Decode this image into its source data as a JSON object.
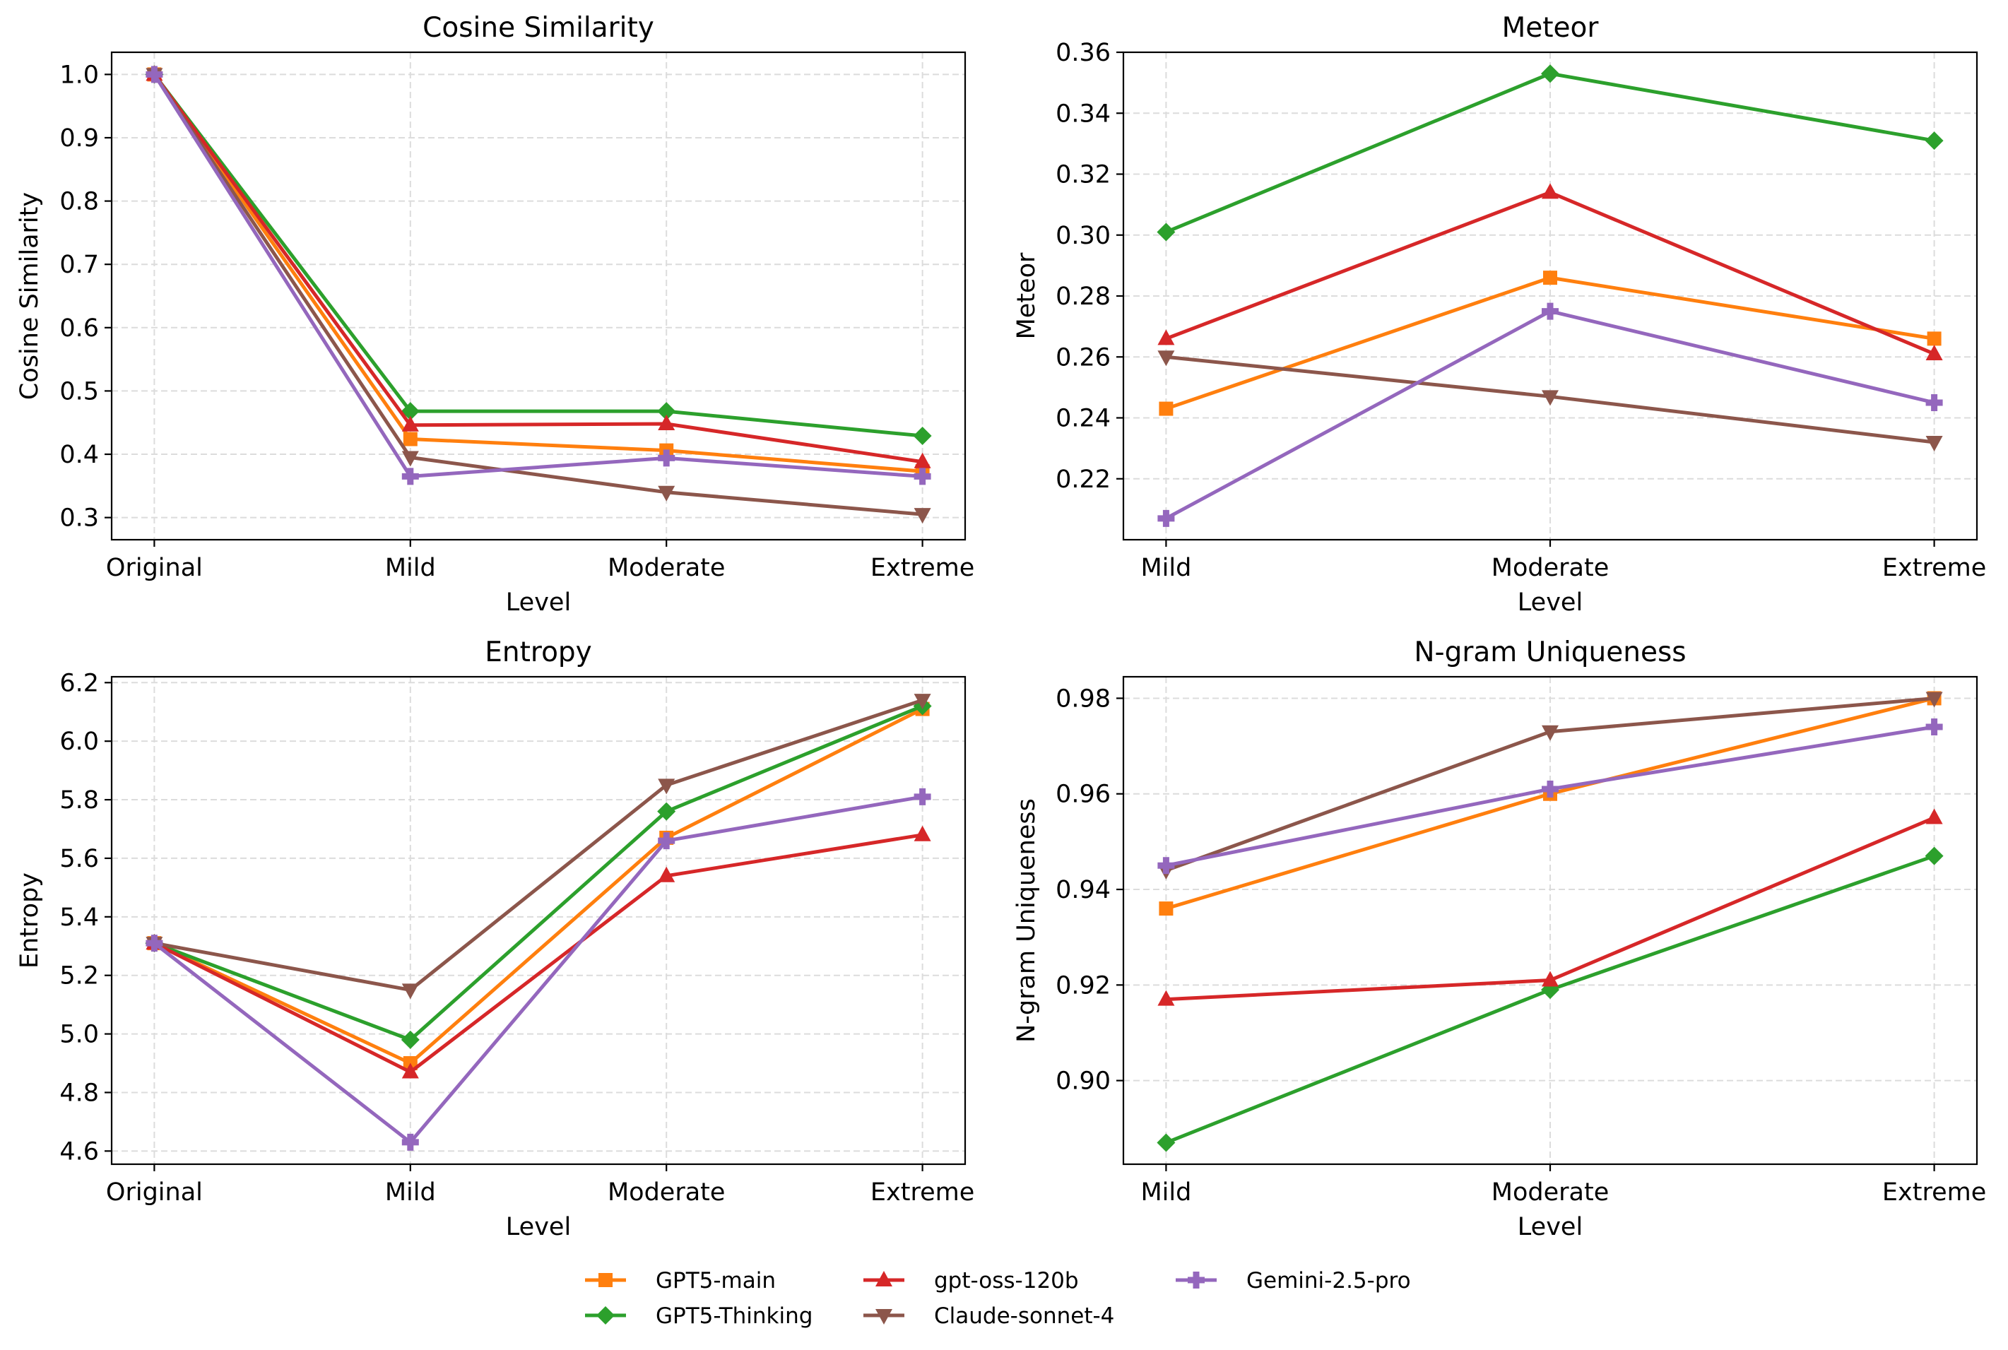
{
  "chart_data": {
    "type": "line",
    "series_styles": [
      {
        "name": "GPT5-main",
        "color": "#ff7f0e",
        "marker": "square"
      },
      {
        "name": "GPT5-Thinking",
        "color": "#2ca02c",
        "marker": "diamond"
      },
      {
        "name": "gpt-oss-120b",
        "color": "#d62728",
        "marker": "triangle-up"
      },
      {
        "name": "Claude-sonnet-4",
        "color": "#8c564b",
        "marker": "triangle-down"
      },
      {
        "name": "Gemini-2.5-pro",
        "color": "#9467bd",
        "marker": "plus"
      }
    ],
    "legend": {
      "placement": "bottom-center",
      "entries": [
        "GPT5-main",
        "gpt-oss-120b",
        "Gemini-2.5-pro",
        "GPT5-Thinking",
        "Claude-sonnet-4"
      ]
    },
    "panels": [
      {
        "title": "Cosine Similarity",
        "xlabel": "Level",
        "ylabel": "Cosine Similarity",
        "categories": [
          "Original",
          "Mild",
          "Moderate",
          "Extreme"
        ],
        "ylim": [
          0.265,
          1.035
        ],
        "yticks": [
          0.3,
          0.4,
          0.5,
          0.6,
          0.7,
          0.8,
          0.9,
          1.0
        ],
        "ytick_labels": [
          "0.3",
          "0.4",
          "0.5",
          "0.6",
          "0.7",
          "0.8",
          "0.9",
          "1.0"
        ],
        "grid": true,
        "series": [
          {
            "name": "GPT5-main",
            "values": [
              1.0,
              0.424,
              0.406,
              0.373
            ]
          },
          {
            "name": "GPT5-Thinking",
            "values": [
              1.0,
              0.468,
              0.468,
              0.429
            ]
          },
          {
            "name": "gpt-oss-120b",
            "values": [
              1.0,
              0.446,
              0.448,
              0.388
            ]
          },
          {
            "name": "Claude-sonnet-4",
            "values": [
              1.0,
              0.395,
              0.34,
              0.305
            ]
          },
          {
            "name": "Gemini-2.5-pro",
            "values": [
              1.0,
              0.365,
              0.394,
              0.365
            ]
          }
        ]
      },
      {
        "title": "Meteor",
        "xlabel": "Level",
        "ylabel": "Meteor",
        "categories": [
          "Mild",
          "Moderate",
          "Extreme"
        ],
        "ylim": [
          0.2,
          0.36
        ],
        "yticks": [
          0.22,
          0.24,
          0.26,
          0.28,
          0.3,
          0.32,
          0.34,
          0.36
        ],
        "ytick_labels": [
          "0.22",
          "0.24",
          "0.26",
          "0.28",
          "0.30",
          "0.32",
          "0.34",
          "0.36"
        ],
        "grid": true,
        "series": [
          {
            "name": "GPT5-main",
            "values": [
              0.243,
              0.286,
              0.266
            ]
          },
          {
            "name": "GPT5-Thinking",
            "values": [
              0.301,
              0.353,
              0.331
            ]
          },
          {
            "name": "gpt-oss-120b",
            "values": [
              0.266,
              0.314,
              0.261
            ]
          },
          {
            "name": "Claude-sonnet-4",
            "values": [
              0.26,
              0.247,
              0.232
            ]
          },
          {
            "name": "Gemini-2.5-pro",
            "values": [
              0.207,
              0.275,
              0.245
            ]
          }
        ]
      },
      {
        "title": "Entropy",
        "xlabel": "Level",
        "ylabel": "Entropy",
        "categories": [
          "Original",
          "Mild",
          "Moderate",
          "Extreme"
        ],
        "ylim": [
          4.555,
          6.22
        ],
        "yticks": [
          4.6,
          4.8,
          5.0,
          5.2,
          5.4,
          5.6,
          5.8,
          6.0,
          6.2
        ],
        "ytick_labels": [
          "4.6",
          "4.8",
          "5.0",
          "5.2",
          "5.4",
          "5.6",
          "5.8",
          "6.0",
          "6.2"
        ],
        "grid": true,
        "series": [
          {
            "name": "GPT5-main",
            "values": [
              5.31,
              4.9,
              5.67,
              6.11
            ]
          },
          {
            "name": "GPT5-Thinking",
            "values": [
              5.31,
              4.98,
              5.76,
              6.12
            ]
          },
          {
            "name": "gpt-oss-120b",
            "values": [
              5.31,
              4.87,
              5.54,
              5.68
            ]
          },
          {
            "name": "Claude-sonnet-4",
            "values": [
              5.31,
              5.15,
              5.85,
              6.14
            ]
          },
          {
            "name": "Gemini-2.5-pro",
            "values": [
              5.31,
              4.63,
              5.66,
              5.81
            ]
          }
        ]
      },
      {
        "title": "N-gram Uniqueness",
        "xlabel": "Level",
        "ylabel": "N-gram Uniqueness",
        "categories": [
          "Mild",
          "Moderate",
          "Extreme"
        ],
        "ylim": [
          0.8825,
          0.9845
        ],
        "yticks": [
          0.9,
          0.92,
          0.94,
          0.96,
          0.98
        ],
        "ytick_labels": [
          "0.90",
          "0.92",
          "0.94",
          "0.96",
          "0.98"
        ],
        "grid": true,
        "series": [
          {
            "name": "GPT5-main",
            "values": [
              0.936,
              0.96,
              0.98
            ]
          },
          {
            "name": "GPT5-Thinking",
            "values": [
              0.887,
              0.919,
              0.947
            ]
          },
          {
            "name": "gpt-oss-120b",
            "values": [
              0.917,
              0.921,
              0.955
            ]
          },
          {
            "name": "Claude-sonnet-4",
            "values": [
              0.944,
              0.973,
              0.98
            ]
          },
          {
            "name": "Gemini-2.5-pro",
            "values": [
              0.945,
              0.961,
              0.974
            ]
          }
        ]
      }
    ]
  }
}
